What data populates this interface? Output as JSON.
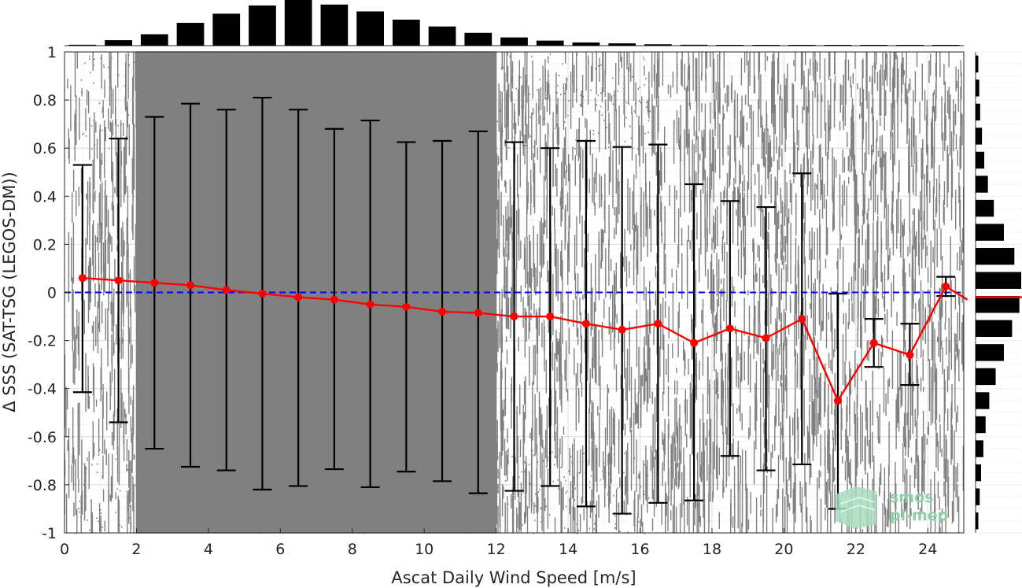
{
  "chart_data": {
    "type": "scatter",
    "xlabel": "Ascat Daily Wind Speed [m/s]",
    "ylabel": "Δ SSS (SAT-TSG (LEGOS-DM))",
    "xlim": [
      0,
      25
    ],
    "ylim": [
      -1,
      1
    ],
    "x_ticks": [
      "0",
      "2",
      "4",
      "6",
      "8",
      "10",
      "12",
      "14",
      "16",
      "18",
      "20",
      "22",
      "24"
    ],
    "y_ticks": [
      "-1",
      "-0.8",
      "-0.6",
      "-0.4",
      "-0.2",
      "0",
      "0.2",
      "0.4",
      "0.6",
      "0.8",
      "1"
    ],
    "grid": true,
    "zero_line": {
      "y": 0,
      "color": "#0000ff",
      "style": "dashed"
    },
    "mean_series": {
      "color": "#ff0000",
      "x": [
        0.5,
        1.5,
        2.5,
        3.5,
        4.5,
        5.5,
        6.5,
        7.5,
        8.5,
        9.5,
        10.5,
        11.5,
        12.5,
        13.5,
        14.5,
        15.5,
        16.5,
        17.5,
        18.5,
        19.5,
        20.5,
        21.5,
        22.5,
        23.5,
        24.5
      ],
      "mean": [
        0.06,
        0.05,
        0.04,
        0.03,
        0.01,
        -0.005,
        -0.02,
        -0.03,
        -0.05,
        -0.06,
        -0.08,
        -0.085,
        -0.1,
        -0.1,
        -0.13,
        -0.155,
        -0.13,
        -0.21,
        -0.15,
        -0.19,
        -0.11,
        -0.45,
        -0.21,
        -0.26,
        0.025
      ],
      "upper": [
        0.53,
        0.64,
        0.73,
        0.785,
        0.76,
        0.81,
        0.76,
        0.68,
        0.715,
        0.625,
        0.63,
        0.67,
        0.625,
        0.6,
        0.63,
        0.605,
        0.615,
        0.45,
        0.38,
        0.355,
        0.495,
        -0.005,
        -0.11,
        -0.13,
        0.065
      ],
      "lower": [
        -0.415,
        -0.54,
        -0.65,
        -0.725,
        -0.74,
        -0.82,
        -0.805,
        -0.735,
        -0.81,
        -0.745,
        -0.785,
        -0.835,
        -0.825,
        -0.805,
        -0.89,
        -0.92,
        -0.875,
        -0.865,
        -0.68,
        -0.74,
        -0.715,
        -0.9,
        -0.31,
        -0.385,
        -0.015
      ]
    },
    "scatter_color": "#808080",
    "top_histogram": {
      "x": [
        0.5,
        1.5,
        2.5,
        3.5,
        4.5,
        5.5,
        6.5,
        7.5,
        8.5,
        9.5,
        10.5,
        11.5,
        12.5,
        13.5,
        14.5,
        15.5,
        16.5,
        17.5,
        18.5,
        19.5,
        20.5,
        21.5,
        22.5,
        23.5,
        24.5
      ],
      "relative_counts": [
        0.02,
        0.12,
        0.25,
        0.5,
        0.7,
        0.88,
        1.0,
        0.9,
        0.75,
        0.57,
        0.42,
        0.28,
        0.18,
        0.11,
        0.07,
        0.05,
        0.03,
        0.02,
        0.015,
        0.012,
        0.01,
        0.008,
        0.006,
        0.004,
        0.003
      ]
    },
    "right_histogram": {
      "y": [
        -0.95,
        -0.85,
        -0.75,
        -0.65,
        -0.55,
        -0.45,
        -0.35,
        -0.25,
        -0.15,
        -0.05,
        0.05,
        0.15,
        0.25,
        0.35,
        0.45,
        0.55,
        0.65,
        0.75,
        0.85,
        0.95
      ],
      "relative_counts": [
        0.06,
        0.09,
        0.12,
        0.17,
        0.22,
        0.3,
        0.44,
        0.62,
        0.8,
        0.96,
        1.0,
        0.85,
        0.62,
        0.4,
        0.27,
        0.19,
        0.14,
        0.1,
        0.08,
        0.06
      ],
      "median_line": {
        "y": -0.02,
        "color": "#ff0000"
      }
    }
  },
  "logo": {
    "line1": "smos",
    "line2": "pi-mep",
    "color": "#8fcfa8"
  }
}
